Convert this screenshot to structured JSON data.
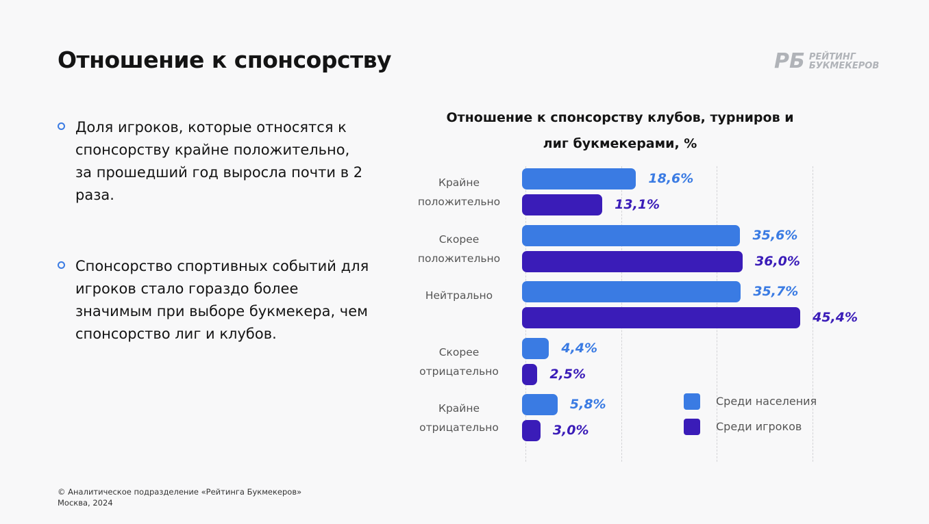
{
  "header": {
    "title": "Отношение к спонсорству",
    "logo_mark": "РБ",
    "logo_lines": [
      "РЕЙТИНГ",
      "БУКМЕКЕРОВ"
    ]
  },
  "bullets": [
    "Доля игроков, которые относятся к спонсорству крайне положительно, за прошедший год выросла почти в 2 раза.",
    "Спонсорство спортивных событий для игроков стало гораздо более значимым при выборе букмекера, чем спонсорство лиг и клубов."
  ],
  "footer": [
    "© Аналитическое подразделение «Рейтинга Букмекеров»",
    "Москва, 2024"
  ],
  "chart_data": {
    "type": "bar",
    "orientation": "horizontal",
    "title": "Отношение к спонсорству клубов, турниров и лиг букмекерами, %",
    "categories": [
      "Крайне положительно",
      "Скорее положительно",
      "Нейтрально",
      "Скорее отрицательно",
      "Крайне отрицательно"
    ],
    "series": [
      {
        "name": "Среди населения",
        "color": "#3a7be3",
        "values": [
          18.6,
          35.6,
          35.7,
          4.4,
          5.8
        ],
        "value_labels": [
          "18,6%",
          "35,6%",
          "35,7%",
          "4,4%",
          "5,8%"
        ]
      },
      {
        "name": "Среди игроков",
        "color": "#3a1cb8",
        "values": [
          13.1,
          36.0,
          45.4,
          2.5,
          3.0
        ],
        "value_labels": [
          "13,1%",
          "36,0%",
          "45,4%",
          "2,5%",
          "3,0%"
        ]
      }
    ],
    "xlim": [
      0,
      47.4
    ],
    "grid": true,
    "legend": "bottom-right"
  }
}
